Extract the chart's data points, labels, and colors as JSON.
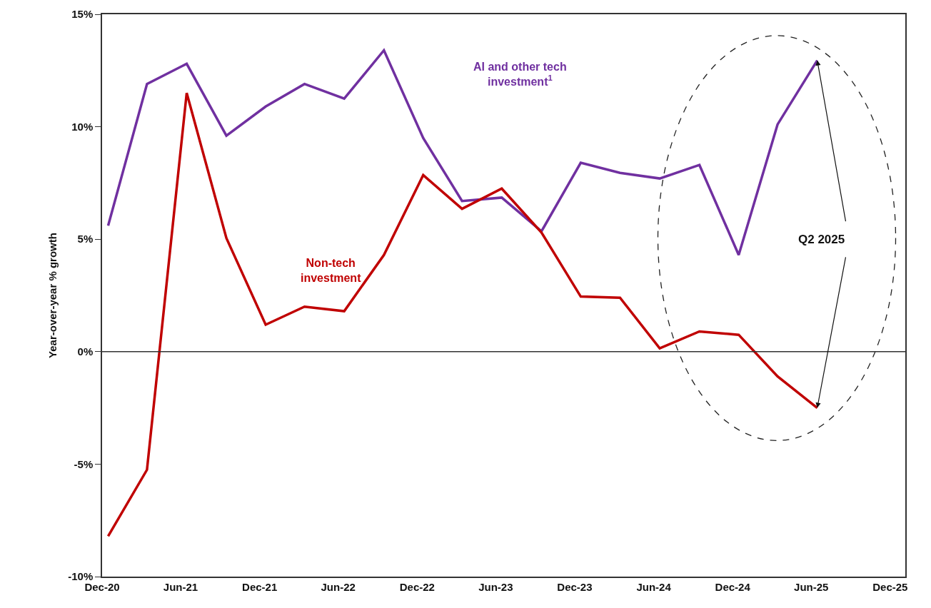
{
  "chart_data": {
    "type": "line",
    "ylabel": "Year-over-year % growth",
    "x": [
      "2020-12-15",
      "2021-03-15",
      "2021-06-15",
      "2021-09-15",
      "2021-12-15",
      "2022-03-15",
      "2022-06-15",
      "2022-09-15",
      "2022-12-15",
      "2023-03-15",
      "2023-06-15",
      "2023-09-15",
      "2023-12-15",
      "2024-03-15",
      "2024-06-15",
      "2024-09-15",
      "2024-12-15",
      "2025-03-15",
      "2025-06-15"
    ],
    "series": [
      {
        "name": "AI and other tech investment$^{1}$",
        "color": "#7030a0",
        "values": [
          5.6,
          11.9,
          12.8,
          9.6,
          10.9,
          11.9,
          11.25,
          13.4,
          9.5,
          6.7,
          6.85,
          5.35,
          8.4,
          7.95,
          7.7,
          8.3,
          4.3,
          10.1,
          12.95
        ]
      },
      {
        "name": "Non-tech investment",
        "color": "#c00000",
        "values": [
          -8.2,
          -5.25,
          11.5,
          5.05,
          1.2,
          2.0,
          1.8,
          4.3,
          7.85,
          6.35,
          7.25,
          5.3,
          2.45,
          2.4,
          0.15,
          0.9,
          0.75,
          -1.1,
          -2.5
        ]
      }
    ],
    "xlim": [
      "2020-12-01",
      "2026-01-05"
    ],
    "xticks": [
      {
        "value": "2020-12-01",
        "label": "Dec-20"
      },
      {
        "value": "2021-06-01",
        "label": "Jun-21"
      },
      {
        "value": "2021-12-01",
        "label": "Dec-21"
      },
      {
        "value": "2022-06-01",
        "label": "Jun-22"
      },
      {
        "value": "2022-12-01",
        "label": "Dec-22"
      },
      {
        "value": "2023-06-01",
        "label": "Jun-23"
      },
      {
        "value": "2023-12-01",
        "label": "Dec-23"
      },
      {
        "value": "2024-06-01",
        "label": "Jun-24"
      },
      {
        "value": "2024-12-01",
        "label": "Dec-24"
      },
      {
        "value": "2025-06-01",
        "label": "Jun-25"
      },
      {
        "value": "2025-12-01",
        "label": "Dec-25"
      }
    ],
    "ylim": [
      -10,
      15
    ],
    "yticks": [
      {
        "value": -10,
        "label": "-10%"
      },
      {
        "value": -5,
        "label": "-5%"
      },
      {
        "value": 0,
        "label": "0%"
      },
      {
        "value": 5,
        "label": "5%"
      },
      {
        "value": 10,
        "label": "10%"
      },
      {
        "value": 15,
        "label": "15%"
      }
    ],
    "annotations": [
      {
        "text": "Q2 2025",
        "x": "2025-06-15",
        "y": 12.95
      }
    ],
    "ref_lines": [
      {
        "axis": "y",
        "value": 0,
        "color": "#333333",
        "line_style": "solid"
      }
    ],
    "legend": false,
    "marker": "none",
    "line_style": "solid"
  }
}
